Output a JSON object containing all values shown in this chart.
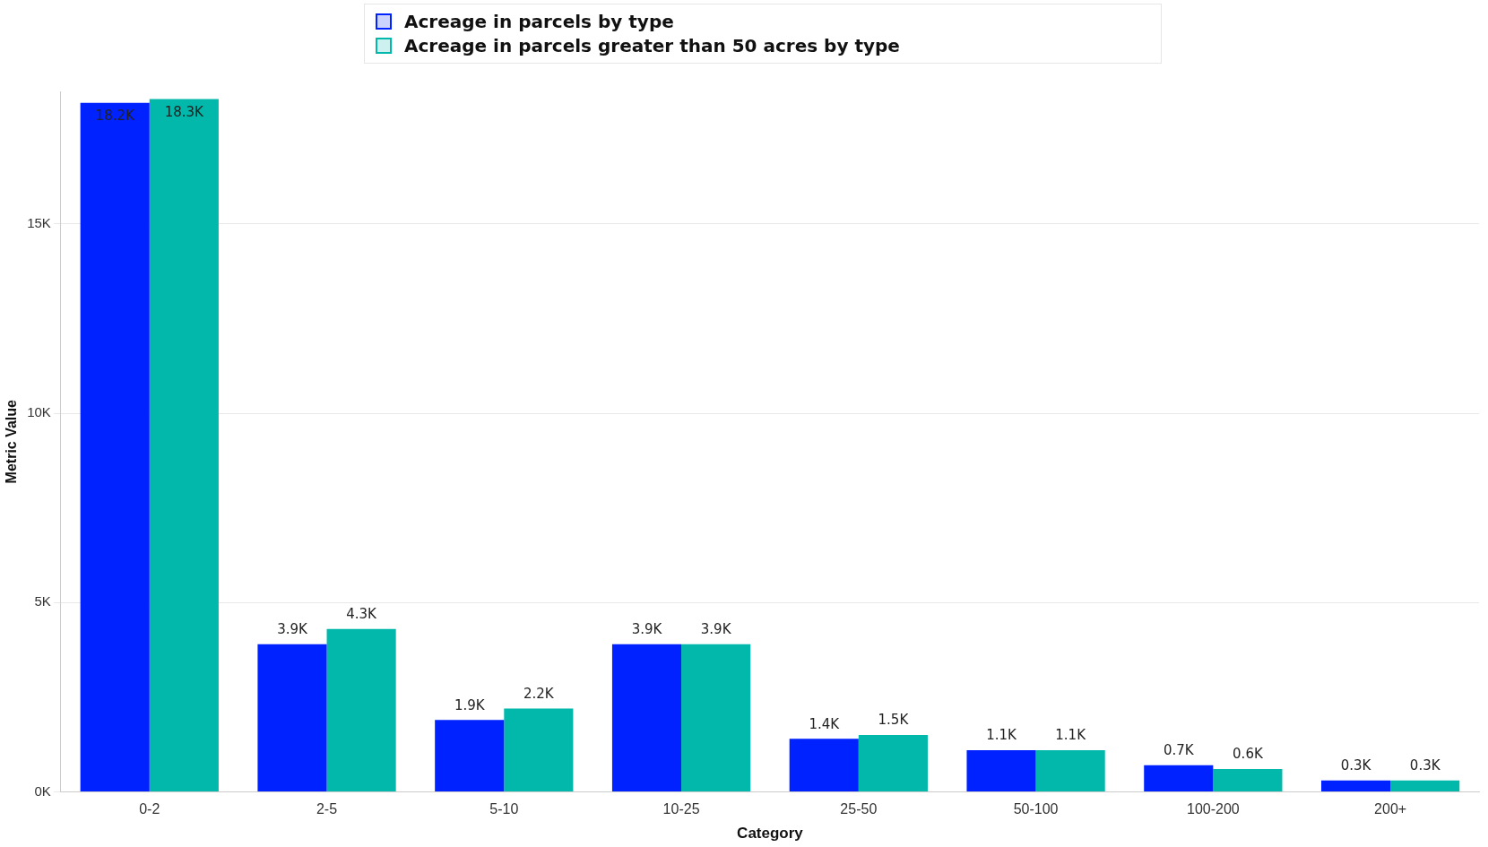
{
  "chart_data": {
    "type": "bar",
    "xlabel": "Category",
    "ylabel": "Metric Value",
    "categories": [
      "0-2",
      "2-5",
      "5-10",
      "10-25",
      "25-50",
      "50-100",
      "100-200",
      "200+"
    ],
    "series": [
      {
        "name": "Acreage in parcels by type",
        "color": "#0022ff",
        "values": [
          18200,
          3900,
          1900,
          3900,
          1400,
          1100,
          700,
          300
        ],
        "value_labels": [
          "18.2K",
          "3.9K",
          "1.9K",
          "3.9K",
          "1.4K",
          "1.1K",
          "0.7K",
          "0.3K"
        ]
      },
      {
        "name": "Acreage in parcels greater than 50 acres by type",
        "color": "#01b8aa",
        "values": [
          18300,
          4300,
          2200,
          3900,
          1500,
          1100,
          600,
          300
        ],
        "value_labels": [
          "18.3K",
          "4.3K",
          "2.2K",
          "3.9K",
          "1.5K",
          "1.1K",
          "0.6K",
          "0.3K"
        ]
      }
    ],
    "ylim": [
      0,
      18500
    ],
    "yticks": [
      {
        "value": 0,
        "label": "0K"
      },
      {
        "value": 5000,
        "label": "5K"
      },
      {
        "value": 10000,
        "label": "10K"
      },
      {
        "value": 15000,
        "label": "15K"
      }
    ],
    "grid": "y",
    "legend": "top"
  }
}
